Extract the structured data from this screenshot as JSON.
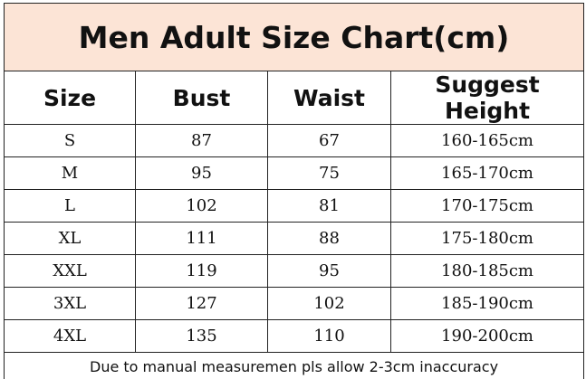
{
  "header": {
    "title": "Men Adult Size Chart(cm)"
  },
  "table": {
    "columns": [
      "Size",
      "Bust",
      "Waist",
      "Suggest Height"
    ],
    "rows": [
      [
        "S",
        "87",
        "67",
        "160-165cm"
      ],
      [
        "M",
        "95",
        "75",
        "165-170cm"
      ],
      [
        "L",
        "102",
        "81",
        "170-175cm"
      ],
      [
        "XL",
        "111",
        "88",
        "175-180cm"
      ],
      [
        "XXL",
        "119",
        "95",
        "180-185cm"
      ],
      [
        "3XL",
        "127",
        "102",
        "185-190cm"
      ],
      [
        "4XL",
        "135",
        "110",
        "190-200cm"
      ]
    ]
  },
  "footer": {
    "note": "Due to manual measuremen pls allow 2-3cm inaccuracy"
  }
}
